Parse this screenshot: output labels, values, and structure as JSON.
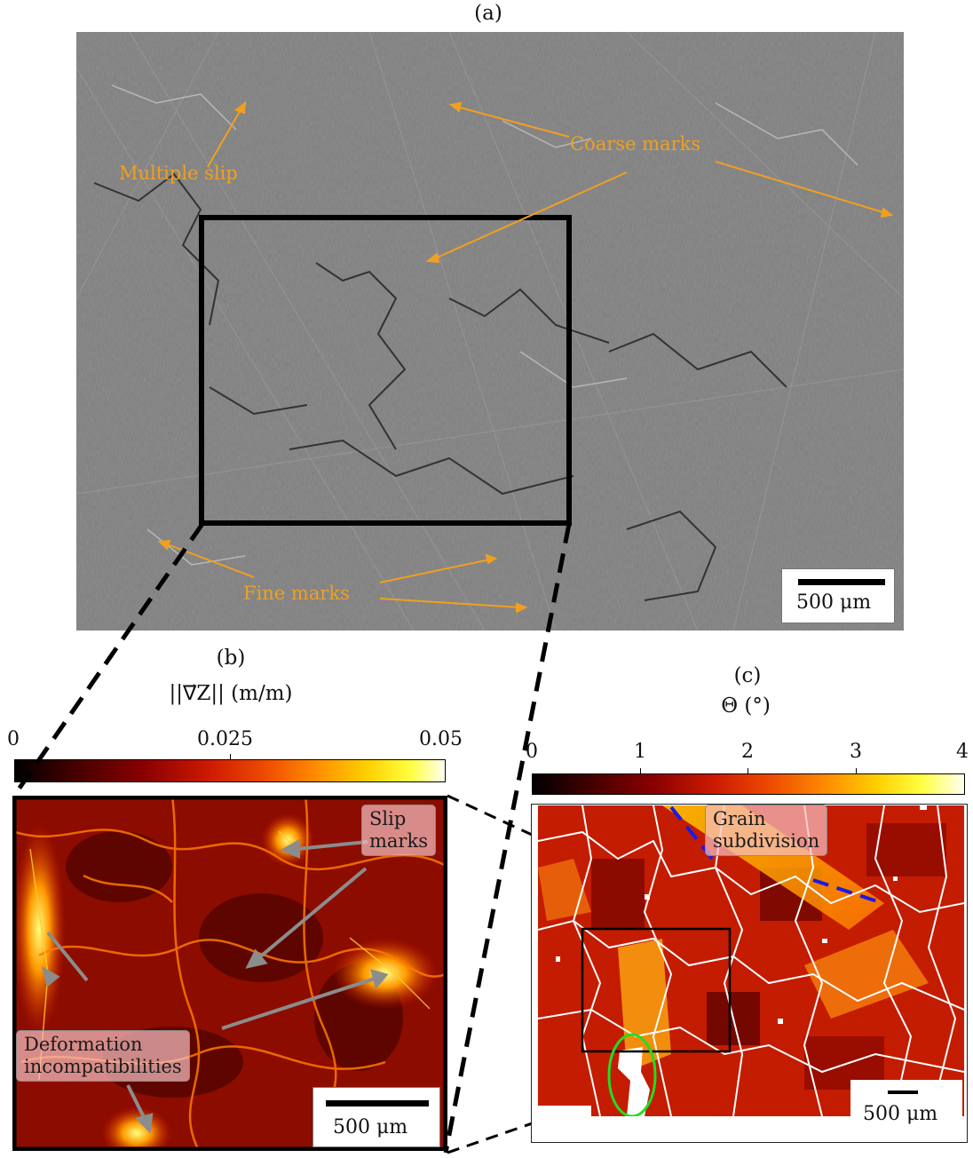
{
  "panel_a": {
    "label": "(a)",
    "annotations": {
      "multiple_slip": "Multiple slip",
      "coarse_marks": "Coarse marks",
      "fine_marks": "Fine marks"
    },
    "scale_bar": "500 μm"
  },
  "panel_b": {
    "label": "(b)",
    "colorbar_title": "||∇⃗Z|| (m/m)",
    "colorbar_ticks": [
      "0",
      "0.025",
      "0.05"
    ],
    "annotations": {
      "slip_marks": "Slip\nmarks",
      "deformation": "Deformation\nincompatibilities"
    },
    "scale_bar": "500 μm"
  },
  "panel_c": {
    "label": "(c)",
    "colorbar_title": "Θ (°)",
    "colorbar_ticks": [
      "0",
      "1",
      "2",
      "3",
      "4"
    ],
    "annotations": {
      "grain_subdivision": "Grain\nsubdivision"
    },
    "scale_bar": "500 μm"
  },
  "colors": {
    "annotation_orange": "#f0a020",
    "arrow_gray": "#8c8c8c",
    "highlight_blue": "#1a1ae6",
    "highlight_green": "#22dd22"
  }
}
